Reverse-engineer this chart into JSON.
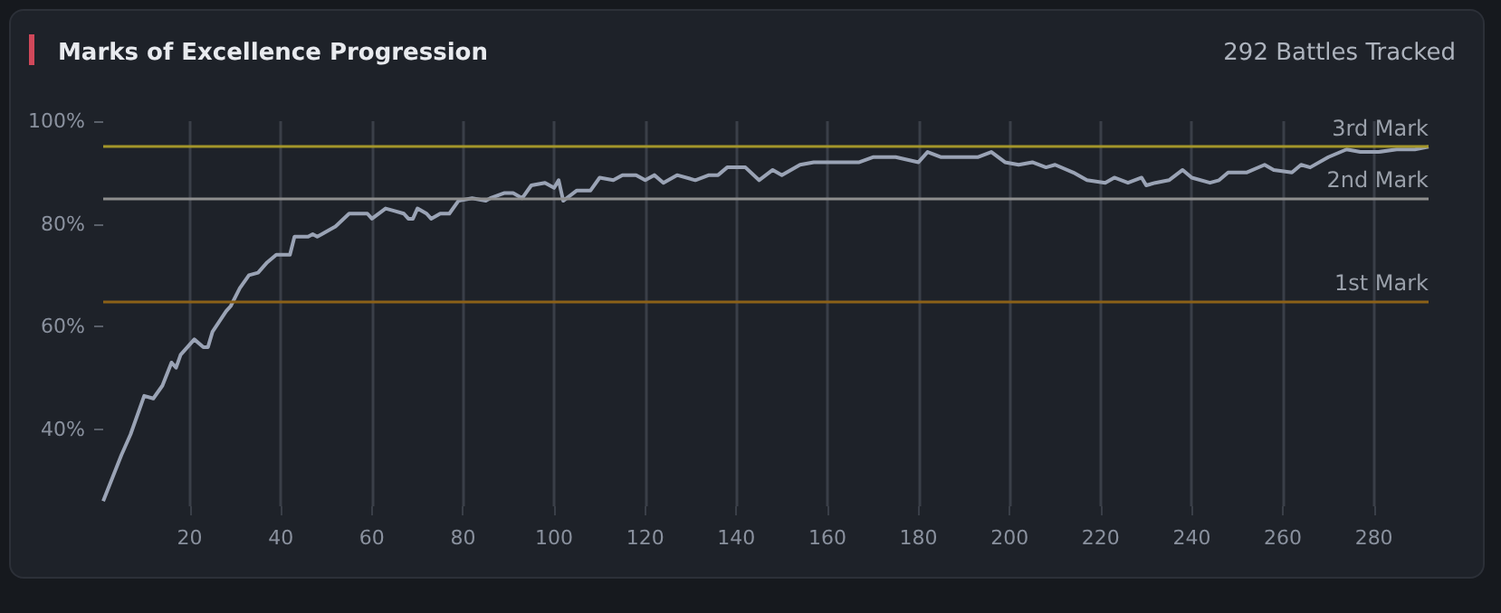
{
  "chart_data": {
    "type": "line",
    "title": "Marks of Excellence Progression",
    "subtitle": "292 Battles Tracked",
    "x": [
      1,
      5,
      7,
      10,
      12,
      14,
      16,
      17,
      18,
      21,
      23,
      24,
      25,
      28,
      29,
      31,
      33,
      35,
      37,
      39,
      42,
      43,
      46,
      47,
      48,
      49,
      52,
      55,
      59,
      60,
      63,
      65,
      67,
      68,
      69,
      70,
      72,
      73,
      75,
      77,
      79,
      82,
      85,
      86,
      89,
      91,
      93,
      95,
      98,
      100,
      101,
      102,
      105,
      108,
      110,
      113,
      115,
      118,
      120,
      122,
      124,
      127,
      131,
      134,
      136,
      138,
      142,
      145,
      148,
      150,
      154,
      157,
      160,
      163,
      167,
      170,
      175,
      180,
      182,
      185,
      189,
      193,
      196,
      199,
      202,
      205,
      208,
      210,
      214,
      217,
      221,
      223,
      226,
      229,
      230,
      232,
      235,
      238,
      240,
      244,
      246,
      248,
      252,
      256,
      258,
      262,
      264,
      266,
      270,
      274,
      277,
      281,
      285,
      289,
      292
    ],
    "series": [
      {
        "color": "#9aa3b5",
        "values": [
          26,
          35,
          39,
          46.5,
          46,
          48.5,
          53,
          52,
          54.5,
          57.5,
          56,
          56,
          59,
          63,
          64,
          67.5,
          70,
          70.5,
          72.5,
          74,
          74,
          77.5,
          77.5,
          78,
          77.5,
          78,
          79.5,
          82,
          82,
          81,
          83,
          82.5,
          82,
          81,
          81,
          83,
          82,
          81,
          82,
          82,
          84.5,
          85,
          84.5,
          85,
          86,
          86,
          85,
          87.5,
          88,
          87,
          88.5,
          84.5,
          86.5,
          86.5,
          89,
          88.5,
          89.5,
          89.5,
          88.5,
          89.5,
          88,
          89.5,
          88.5,
          89.5,
          89.5,
          91,
          91,
          88.5,
          90.5,
          89.5,
          91.5,
          92,
          92,
          92,
          92,
          93,
          93,
          92,
          94,
          93,
          93,
          93,
          94,
          92,
          91.5,
          92,
          91,
          91.5,
          90,
          88.5,
          88,
          89,
          88,
          89,
          87.5,
          88,
          88.5,
          90.5,
          89,
          88,
          88.5,
          90,
          90,
          91.5,
          90.5,
          90,
          91.5,
          91,
          93,
          94.5,
          94,
          94,
          94.5,
          94.5,
          95
        ]
      }
    ],
    "xlim": [
      1,
      292
    ],
    "xticks": [
      20,
      40,
      60,
      80,
      100,
      120,
      140,
      160,
      180,
      200,
      220,
      240,
      260,
      280
    ],
    "ylim": [
      25,
      100
    ],
    "yticks": [
      {
        "value": 40,
        "label": "40%"
      },
      {
        "value": 60,
        "label": "60%"
      },
      {
        "value": 80,
        "label": "80%"
      },
      {
        "value": 100,
        "label": "100%"
      }
    ],
    "ref_lines": [
      {
        "axis": "y",
        "value": 95,
        "label": "3rd Mark",
        "color": "#a4962a"
      },
      {
        "axis": "y",
        "value": 85,
        "label": "2nd Mark",
        "color": "#8e8e8e"
      },
      {
        "axis": "y",
        "value": 65,
        "label": "1st Mark",
        "color": "#8b6118"
      }
    ],
    "grid": "x",
    "marker": "none",
    "line_style": "solid"
  }
}
